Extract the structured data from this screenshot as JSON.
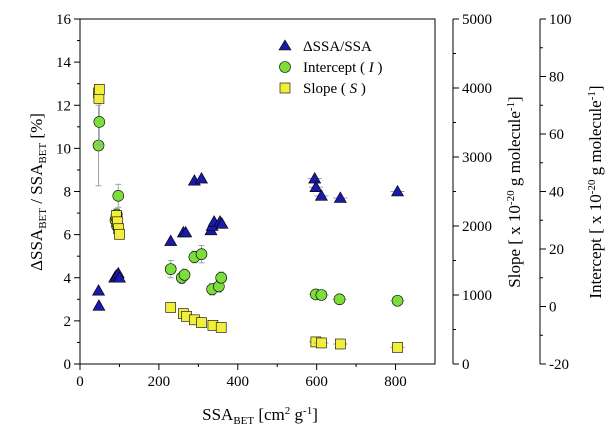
{
  "chart_data": {
    "type": "scatter",
    "title": "",
    "x_axis": {
      "label_main": "SSA",
      "label_sub": "BET",
      "label_unit_1": " [cm",
      "label_unit_sup": "2",
      "label_unit_2": " g",
      "label_unit_sup2": "-1",
      "label_unit_3": "]",
      "min": 0,
      "max": 900,
      "ticks": [
        0,
        200,
        400,
        600,
        800
      ]
    },
    "y_left": {
      "label_main_1": "ΔSSA",
      "label_sub_1": "BET",
      "label_mid": " / SSA",
      "label_sub_2": "BET",
      "label_end": " [%]",
      "min": 0,
      "max": 16,
      "ticks": [
        0,
        2,
        4,
        6,
        8,
        10,
        12,
        14,
        16
      ]
    },
    "y_slope": {
      "label_1": "Slope [ x 10",
      "label_sup": "-20",
      "label_2": " g molecule",
      "label_sup2": "-1",
      "label_3": "]",
      "min": 0,
      "max": 5000,
      "ticks": [
        0,
        1000,
        2000,
        3000,
        4000,
        5000
      ]
    },
    "y_intercept": {
      "label_1": "Intercept [ x 10",
      "label_sup": "-20",
      "label_2": " g molecule",
      "label_sup2": "-1",
      "label_3": "]",
      "min": -20,
      "max": 100,
      "ticks": [
        -20,
        0,
        20,
        40,
        60,
        80,
        100
      ]
    },
    "legend": {
      "placement": "top-right",
      "entries": [
        {
          "key": "dssa",
          "label": "ΔSSA/SSA"
        },
        {
          "key": "intercept",
          "label_pre": "Intercept ( ",
          "label_it": "I",
          "label_post": " )"
        },
        {
          "key": "slope",
          "label_pre": "Slope ( ",
          "label_it": "S",
          "label_post": " )"
        }
      ]
    },
    "series": [
      {
        "key": "dssa",
        "marker": "triangle",
        "color": "#1a1aa6",
        "axis": "left",
        "points": [
          {
            "x": 47,
            "y": 3.4
          },
          {
            "x": 48,
            "y": 2.7
          },
          {
            "x": 88,
            "y": 4.0
          },
          {
            "x": 92,
            "y": 4.1
          },
          {
            "x": 97,
            "y": 4.2
          },
          {
            "x": 100,
            "y": 4.0
          },
          {
            "x": 230,
            "y": 5.7
          },
          {
            "x": 262,
            "y": 6.1
          },
          {
            "x": 268,
            "y": 6.1
          },
          {
            "x": 290,
            "y": 8.5
          },
          {
            "x": 308,
            "y": 8.6
          },
          {
            "x": 332,
            "y": 6.2
          },
          {
            "x": 335,
            "y": 6.4
          },
          {
            "x": 340,
            "y": 6.6
          },
          {
            "x": 355,
            "y": 6.6
          },
          {
            "x": 360,
            "y": 6.5
          },
          {
            "x": 595,
            "y": 8.6
          },
          {
            "x": 598,
            "y": 8.2
          },
          {
            "x": 612,
            "y": 7.8
          },
          {
            "x": 660,
            "y": 7.7
          },
          {
            "x": 805,
            "y": 8.0
          }
        ]
      },
      {
        "key": "intercept",
        "marker": "circle",
        "color": "#7cde3a",
        "axis": "intercept",
        "points": [
          {
            "x": 47,
            "y": 56.0,
            "err": 14
          },
          {
            "x": 49,
            "y": 64.2,
            "err": 8
          },
          {
            "x": 90,
            "y": 30.0,
            "err": 2
          },
          {
            "x": 92,
            "y": 31.0,
            "err": 2.5
          },
          {
            "x": 93,
            "y": 32.0,
            "err": 2
          },
          {
            "x": 94,
            "y": 28.0,
            "err": 2
          },
          {
            "x": 97,
            "y": 38.5,
            "err": 4
          },
          {
            "x": 230,
            "y": 13.0,
            "err": 3
          },
          {
            "x": 258,
            "y": 10.0,
            "err": 2
          },
          {
            "x": 265,
            "y": 11.0,
            "err": 2
          },
          {
            "x": 290,
            "y": 17.2,
            "err": 2
          },
          {
            "x": 308,
            "y": 18.2,
            "err": 3
          },
          {
            "x": 335,
            "y": 6.0,
            "err": 2
          },
          {
            "x": 352,
            "y": 7.0,
            "err": 2
          },
          {
            "x": 358,
            "y": 10.0,
            "err": 2
          },
          {
            "x": 598,
            "y": 4.2,
            "err": 1.5
          },
          {
            "x": 612,
            "y": 4.0,
            "err": 1.5
          },
          {
            "x": 658,
            "y": 2.5,
            "err": 1.5
          },
          {
            "x": 805,
            "y": 2.0,
            "err": 1
          }
        ]
      },
      {
        "key": "slope",
        "marker": "square",
        "color": "#f2ee3c",
        "axis": "slope",
        "points": [
          {
            "x": 47,
            "y": 3930
          },
          {
            "x": 48,
            "y": 3850
          },
          {
            "x": 49,
            "y": 3980
          },
          {
            "x": 92,
            "y": 2150
          },
          {
            "x": 95,
            "y": 2060
          },
          {
            "x": 98,
            "y": 1960
          },
          {
            "x": 100,
            "y": 1880
          },
          {
            "x": 230,
            "y": 820
          },
          {
            "x": 262,
            "y": 730
          },
          {
            "x": 270,
            "y": 690
          },
          {
            "x": 290,
            "y": 640
          },
          {
            "x": 308,
            "y": 600
          },
          {
            "x": 337,
            "y": 560
          },
          {
            "x": 358,
            "y": 530
          },
          {
            "x": 598,
            "y": 320
          },
          {
            "x": 612,
            "y": 305
          },
          {
            "x": 660,
            "y": 290
          },
          {
            "x": 805,
            "y": 240
          }
        ]
      }
    ]
  }
}
